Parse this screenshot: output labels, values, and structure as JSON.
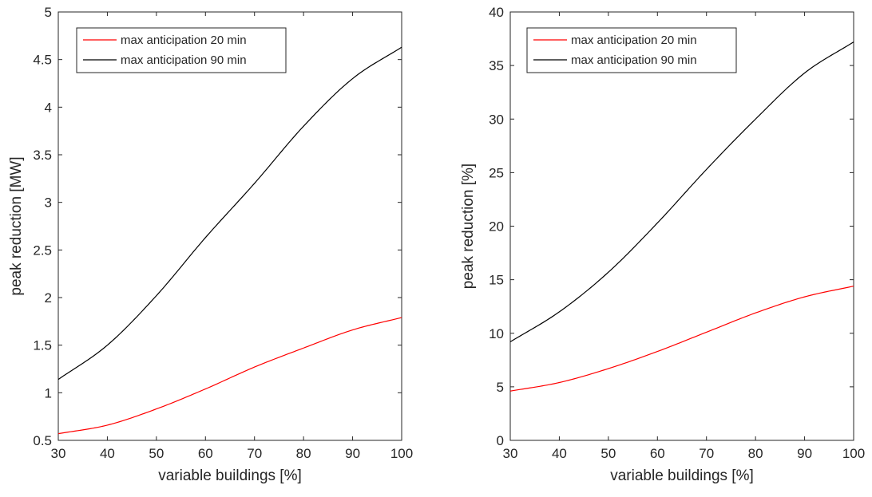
{
  "chart_data": [
    {
      "type": "line",
      "xlabel": "variable buildings [%]",
      "ylabel": "peak reduction [MW]",
      "xlim": [
        30,
        100
      ],
      "ylim": [
        0.5,
        5
      ],
      "xticks": [
        30,
        40,
        50,
        60,
        70,
        80,
        90,
        100
      ],
      "xtick_labels": [
        "30",
        "40",
        "50",
        "60",
        "70",
        "80",
        "90",
        "100"
      ],
      "yticks": [
        0.5,
        1,
        1.5,
        2,
        2.5,
        3,
        3.5,
        4,
        4.5,
        5
      ],
      "ytick_labels": [
        "0.5",
        "1",
        "1.5",
        "2",
        "2.5",
        "3",
        "3.5",
        "4",
        "4.5",
        "5"
      ],
      "grid": false,
      "legend_position": "top-left",
      "x": [
        30,
        40,
        50,
        60,
        70,
        80,
        90,
        100
      ],
      "series": [
        {
          "name": "max anticipation 20 min",
          "color": "#ff0000",
          "values": [
            0.57,
            0.66,
            0.83,
            1.04,
            1.27,
            1.47,
            1.66,
            1.79
          ]
        },
        {
          "name": "max anticipation 90 min",
          "color": "#000000",
          "values": [
            1.14,
            1.5,
            2.02,
            2.63,
            3.2,
            3.8,
            4.3,
            4.63
          ]
        }
      ]
    },
    {
      "type": "line",
      "xlabel": "variable buildings [%]",
      "ylabel": "peak reduction [%]",
      "xlim": [
        30,
        100
      ],
      "ylim": [
        0,
        40
      ],
      "xticks": [
        30,
        40,
        50,
        60,
        70,
        80,
        90,
        100
      ],
      "xtick_labels": [
        "30",
        "40",
        "50",
        "60",
        "70",
        "80",
        "90",
        "100"
      ],
      "yticks": [
        0,
        5,
        10,
        15,
        20,
        25,
        30,
        35,
        40
      ],
      "ytick_labels": [
        "0",
        "5",
        "10",
        "15",
        "20",
        "25",
        "30",
        "35",
        "40"
      ],
      "grid": false,
      "legend_position": "top-left",
      "x": [
        30,
        40,
        50,
        60,
        70,
        80,
        90,
        100
      ],
      "series": [
        {
          "name": "max anticipation 20 min",
          "color": "#ff0000",
          "values": [
            4.6,
            5.4,
            6.7,
            8.3,
            10.1,
            11.9,
            13.4,
            14.4
          ]
        },
        {
          "name": "max anticipation 90 min",
          "color": "#000000",
          "values": [
            9.2,
            12,
            15.7,
            20.3,
            25.3,
            30,
            34.3,
            37.2
          ]
        }
      ]
    }
  ]
}
